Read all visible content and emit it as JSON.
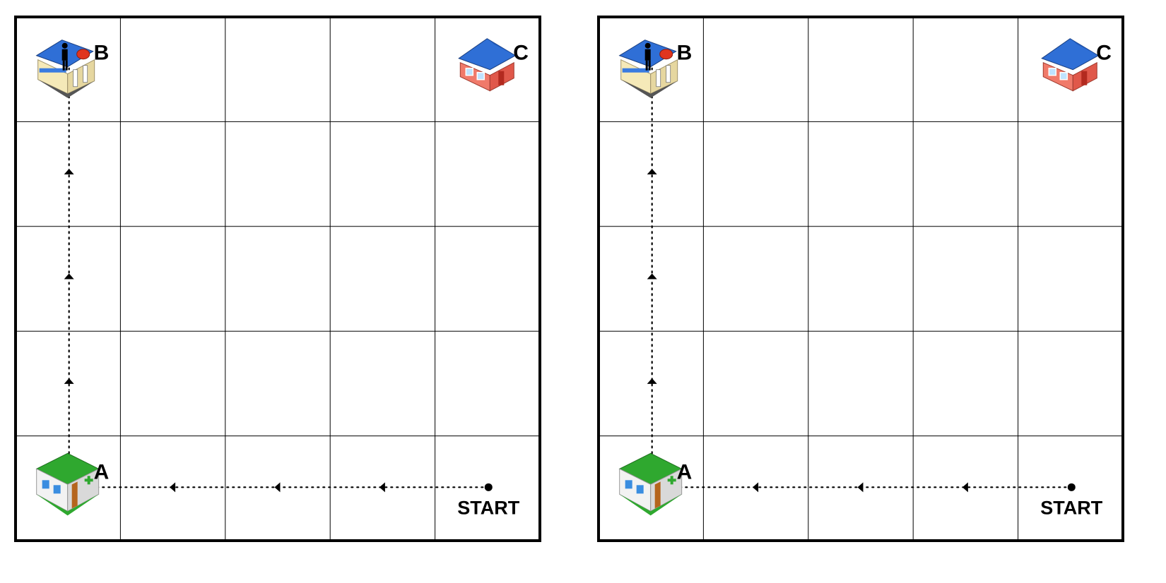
{
  "grids": [
    {
      "rows": 5,
      "cols": 5,
      "start_label": "START",
      "locations": [
        {
          "id": "A",
          "label": "A",
          "building": "hospital-building",
          "row": 4,
          "col": 0
        },
        {
          "id": "B",
          "label": "B",
          "building": "shop-building",
          "row": 0,
          "col": 0
        },
        {
          "id": "C",
          "label": "C",
          "building": "house-building",
          "row": 0,
          "col": 4
        }
      ],
      "start": {
        "row": 4,
        "col": 4
      },
      "path": [
        [
          4,
          4
        ],
        [
          4,
          0
        ],
        [
          0,
          0
        ]
      ]
    },
    {
      "rows": 5,
      "cols": 5,
      "start_label": "START",
      "locations": [
        {
          "id": "A",
          "label": "A",
          "building": "hospital-building",
          "row": 4,
          "col": 0
        },
        {
          "id": "B",
          "label": "B",
          "building": "shop-building",
          "row": 0,
          "col": 0
        },
        {
          "id": "C",
          "label": "C",
          "building": "house-building",
          "row": 0,
          "col": 4
        }
      ],
      "start": {
        "row": 4,
        "col": 4
      },
      "path": [
        [
          4,
          4
        ],
        [
          4,
          0
        ],
        [
          0,
          0
        ]
      ]
    }
  ]
}
